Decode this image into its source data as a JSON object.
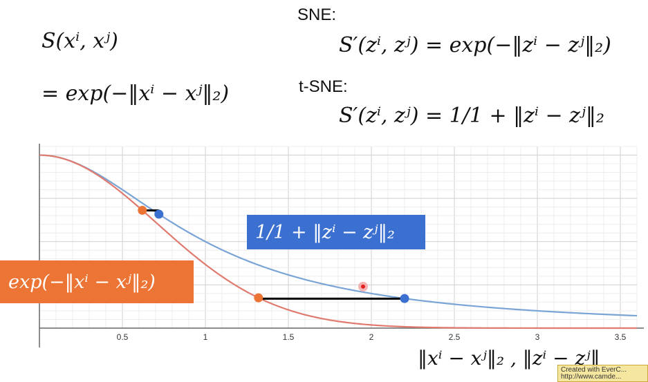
{
  "formulas": {
    "similarity_def": "S(xⁱ, xʲ)",
    "similarity_exp": "= exp(−‖xⁱ − xʲ‖₂)",
    "sne_label": "SNE:",
    "sne_formula": "S′(zⁱ, zʲ) = exp(−‖zⁱ − zʲ‖₂)",
    "tsne_label": "t-SNE:",
    "tsne_formula": "S′(zⁱ, zʲ) = 1/1 + ‖zⁱ − zʲ‖₂"
  },
  "tags": {
    "blue": "1/1 + ‖zⁱ − zʲ‖₂",
    "orange": "exp(−‖xⁱ − xʲ‖₂)"
  },
  "xaxis_label": "‖xⁱ − xʲ‖₂ , ‖zⁱ − zʲ‖",
  "badge_text": "Created with EverC...",
  "badge_text2": "http://www.camde...",
  "chart_data": {
    "type": "line",
    "title": "",
    "xlabel": "‖xⁱ − xʲ‖₂ , ‖zⁱ − zʲ‖",
    "ylabel": "",
    "xlim": [
      0,
      3.6
    ],
    "ylim": [
      0,
      1.05
    ],
    "x_ticks": [
      0.5,
      1,
      1.5,
      2,
      2.5,
      3,
      3.5
    ],
    "x_tick_labels": [
      "0.5",
      "1",
      "1.5",
      "2",
      "2.5",
      "3",
      "3.5"
    ],
    "grid": true,
    "series": [
      {
        "name": "1/1 + ‖zⁱ − zʲ‖₂",
        "color": "#7aa4d6",
        "function": "1/(1+x^2)"
      },
      {
        "name": "exp(−‖xⁱ − xʲ‖₂)",
        "color": "#e07a6e",
        "function": "exp(-x^2)"
      }
    ],
    "markers": [
      {
        "series": "exp(−‖xⁱ − xʲ‖₂)",
        "x": 0.62,
        "color": "#ec7434"
      },
      {
        "series": "1/1 + ‖zⁱ − zʲ‖₂",
        "x": 0.72,
        "color": "#3b6fd0"
      },
      {
        "series": "exp(−‖xⁱ − xʲ‖₂)",
        "x": 1.32,
        "color": "#ec7434"
      },
      {
        "series": "1/1 + ‖zⁱ − zʲ‖₂",
        "x": 2.2,
        "color": "#3b6fd0"
      }
    ],
    "connectors": [
      {
        "x1": 0.62,
        "x2": 0.72,
        "y": 0.68
      },
      {
        "x1": 1.32,
        "x2": 2.2,
        "y": 0.17
      }
    ],
    "cursor_point": {
      "x": 1.95,
      "y": 0.24
    }
  }
}
